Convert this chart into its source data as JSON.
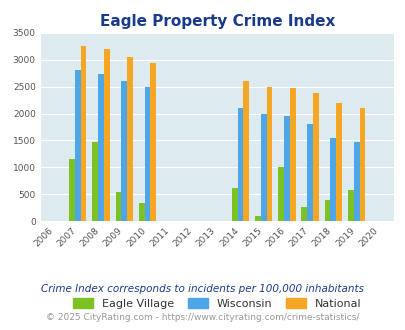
{
  "title": "Eagle Property Crime Index",
  "years": [
    2006,
    2007,
    2008,
    2009,
    2010,
    2011,
    2012,
    2013,
    2014,
    2015,
    2016,
    2017,
    2018,
    2019,
    2020
  ],
  "eagle_village": [
    0,
    1150,
    1480,
    550,
    330,
    0,
    0,
    0,
    620,
    100,
    1000,
    270,
    400,
    580,
    0
  ],
  "wisconsin": [
    0,
    2820,
    2740,
    2600,
    2500,
    0,
    0,
    0,
    2100,
    2000,
    1950,
    1810,
    1550,
    1470,
    0
  ],
  "national": [
    0,
    3250,
    3200,
    3050,
    2950,
    0,
    0,
    0,
    2600,
    2500,
    2480,
    2380,
    2200,
    2100,
    0
  ],
  "eagle_color": "#7dc225",
  "wisconsin_color": "#4da6e8",
  "national_color": "#f5a623",
  "bg_color": "#ddeaf0",
  "ylim": [
    0,
    3500
  ],
  "yticks": [
    0,
    500,
    1000,
    1500,
    2000,
    2500,
    3000,
    3500
  ],
  "footnote1": "Crime Index corresponds to incidents per 100,000 inhabitants",
  "footnote2": "© 2025 CityRating.com - https://www.cityrating.com/crime-statistics/",
  "title_color": "#1a3a8c",
  "footnote1_color": "#1a3a8c",
  "footnote2_color": "#999999",
  "bar_width": 0.25,
  "legend_label_color": "#333333"
}
